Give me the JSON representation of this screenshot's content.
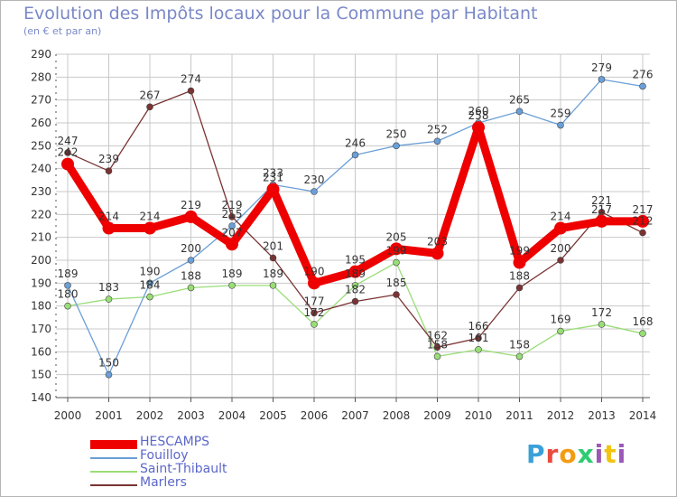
{
  "title": "Evolution des Impôts locaux pour la Commune par Habitant",
  "subtitle": "(en € et par an)",
  "brand": "Proxiti",
  "chart_data": {
    "type": "line",
    "title": "Evolution des Impôts locaux pour la Commune par Habitant",
    "subtitle": "(en € et par an)",
    "x": [
      "2000",
      "2001",
      "2002",
      "2003",
      "2004",
      "2005",
      "2006",
      "2007",
      "2008",
      "2009",
      "2010",
      "2011",
      "2012",
      "2013",
      "2014"
    ],
    "ylim": [
      140,
      290
    ],
    "yticks": [
      "140",
      "150",
      "160",
      "170",
      "180",
      "190",
      "200",
      "210",
      "220",
      "230",
      "240",
      "250",
      "260",
      "270",
      "280",
      "290"
    ],
    "grid": true,
    "legend_position": "bottom-left",
    "series": [
      {
        "name": "HESCAMPS",
        "color": "#ee0000",
        "values": [
          242,
          214,
          214,
          219,
          207,
          231,
          190,
          195,
          205,
          203,
          258,
          199,
          214,
          217,
          217
        ],
        "labels": [
          "242",
          "214",
          "214",
          "219",
          "207",
          "231",
          "190",
          "195",
          "205",
          "203",
          "258",
          "199",
          "214",
          "217",
          "217"
        ]
      },
      {
        "name": "Fouilloy",
        "color": "#6a9fd8",
        "values": [
          189,
          150,
          190,
          200,
          215,
          233,
          230,
          246,
          250,
          252,
          260,
          265,
          259,
          279,
          276
        ],
        "labels": [
          "189",
          "150",
          "190",
          "200",
          "215",
          "233",
          "230",
          "246",
          "250",
          "252",
          "260",
          "265",
          "259",
          "279",
          "276"
        ]
      },
      {
        "name": "Saint-Thibault",
        "color": "#99dd77",
        "values": [
          180,
          183,
          184,
          188,
          189,
          189,
          172,
          189,
          199,
          158,
          161,
          158,
          169,
          172,
          168
        ],
        "labels": [
          "180",
          "183",
          "184",
          "188",
          "189",
          "189",
          "172",
          "189",
          "199",
          "158",
          "161",
          "158",
          "169",
          "172",
          "168"
        ]
      },
      {
        "name": "Marlers",
        "color": "#7a3333",
        "values": [
          247,
          239,
          267,
          274,
          219,
          201,
          177,
          182,
          185,
          162,
          166,
          188,
          200,
          221,
          212
        ],
        "labels": [
          "247",
          "239",
          "267",
          "274",
          "219",
          "201",
          "177",
          "182",
          "185",
          "162",
          "166",
          "188",
          "200",
          "221",
          "212"
        ]
      }
    ]
  },
  "colors": {
    "title": "#7a88c8",
    "grid": "#c8c8c8",
    "axis": "#555555",
    "brand_p": "#3aa0d8",
    "brand_r": "#e84c3d",
    "brand_o": "#f39c12",
    "brand_x": "#2ecc71",
    "brand_i": "#9b59b6",
    "brand_t": "#f1c40f"
  }
}
